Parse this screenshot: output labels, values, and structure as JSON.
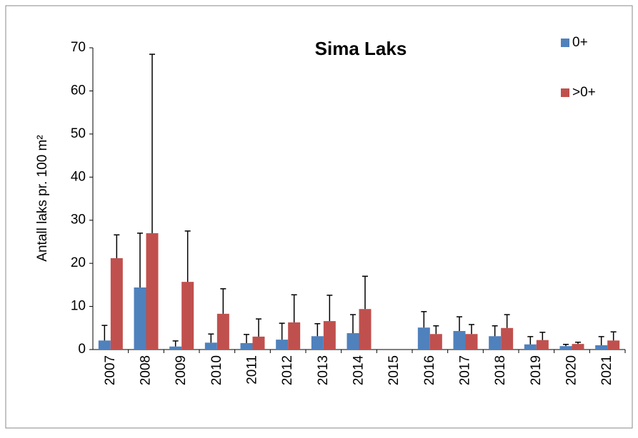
{
  "chart_data": {
    "type": "bar",
    "title": "Sima Laks",
    "y_label": "Antall laks pr. 100 m²",
    "categories": [
      "2007",
      "2008",
      "2009",
      "2010",
      "2011",
      "2012",
      "2013",
      "2014",
      "2015",
      "2016",
      "2017",
      "2018",
      "2019",
      "2020",
      "2021"
    ],
    "series": [
      {
        "name": "0+",
        "color": "#4f81bd",
        "values": [
          2.1,
          14.4,
          0.7,
          1.6,
          1.5,
          2.3,
          3.1,
          3.8,
          null,
          5.1,
          4.3,
          3.1,
          1.2,
          0.8,
          1.0
        ],
        "errors": [
          3.5,
          12.6,
          1.3,
          2.0,
          2.0,
          3.8,
          2.9,
          4.3,
          null,
          3.7,
          3.3,
          2.4,
          1.8,
          0.4,
          2.0
        ]
      },
      {
        "name": ">0+",
        "color": "#c0504d",
        "values": [
          21.2,
          27.0,
          15.7,
          8.3,
          3.0,
          6.3,
          6.6,
          9.4,
          null,
          3.6,
          3.6,
          5.0,
          2.2,
          1.3,
          2.1
        ],
        "errors": [
          5.4,
          41.5,
          11.8,
          5.8,
          4.1,
          6.4,
          6.0,
          7.6,
          null,
          1.9,
          2.2,
          3.1,
          1.8,
          0.4,
          2.0
        ]
      }
    ],
    "ylim": [
      0,
      70
    ],
    "yticks": [
      0,
      10,
      20,
      30,
      40,
      50,
      60,
      70
    ],
    "grid": false,
    "legend": "top-right"
  }
}
